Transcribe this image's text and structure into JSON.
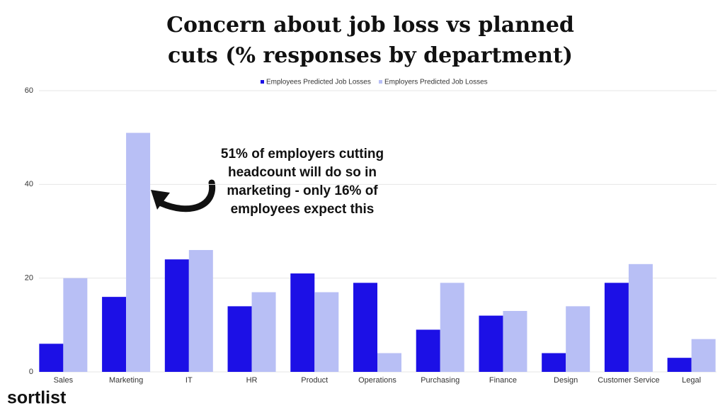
{
  "chart_data": {
    "type": "bar",
    "title": [
      "Concern about job loss vs planned",
      "cuts (% responses by department)"
    ],
    "categories": [
      "Sales",
      "Marketing",
      "IT",
      "HR",
      "Product",
      "Operations",
      "Purchasing",
      "Finance",
      "Design",
      "Customer Service",
      "Legal"
    ],
    "series": [
      {
        "name": "Employees Predicted Job Losses",
        "color": "#1c10e6",
        "values": [
          6,
          16,
          24,
          14,
          21,
          19,
          9,
          12,
          4,
          19,
          3
        ]
      },
      {
        "name": "Employers Predicted Job Losses",
        "color": "#b8bff5",
        "values": [
          20,
          51,
          26,
          17,
          17,
          4,
          19,
          13,
          14,
          23,
          7
        ]
      }
    ],
    "ylim": [
      0,
      60
    ],
    "yticks": [
      0,
      20,
      40,
      60
    ],
    "grid": true,
    "annotation": [
      "51% of employers cutting",
      "headcount will do so in",
      "marketing - only 16% of",
      "employees expect this"
    ],
    "logo": "sortlist"
  }
}
